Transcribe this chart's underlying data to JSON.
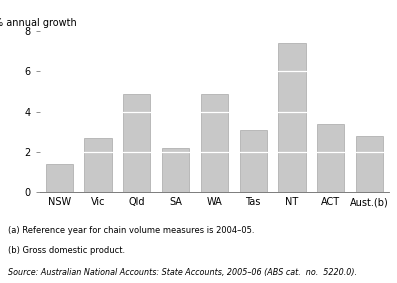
{
  "categories": [
    "NSW",
    "Vic",
    "Qld",
    "SA",
    "WA",
    "Tas",
    "NT",
    "ACT",
    "Aust.(b)"
  ],
  "values": [
    1.4,
    2.7,
    4.9,
    2.2,
    4.9,
    3.1,
    7.4,
    3.4,
    2.8
  ],
  "bar_color": "#c8c8c8",
  "bar_edge_color": "#999999",
  "bar_linewidth": 0.4,
  "ylabel": "% annual growth",
  "ylim": [
    0,
    8
  ],
  "yticks": [
    0,
    2,
    4,
    6,
    8
  ],
  "note1": "(a) Reference year for chain volume measures is 2004–05.",
  "note2": "(b) Gross domestic product.",
  "source": "Source: Australian National Accounts: State Accounts, 2005–06 (ABS cat.  no.  5220.0).",
  "background_color": "#ffffff",
  "white_line_interval": 2,
  "bar_width": 0.7
}
